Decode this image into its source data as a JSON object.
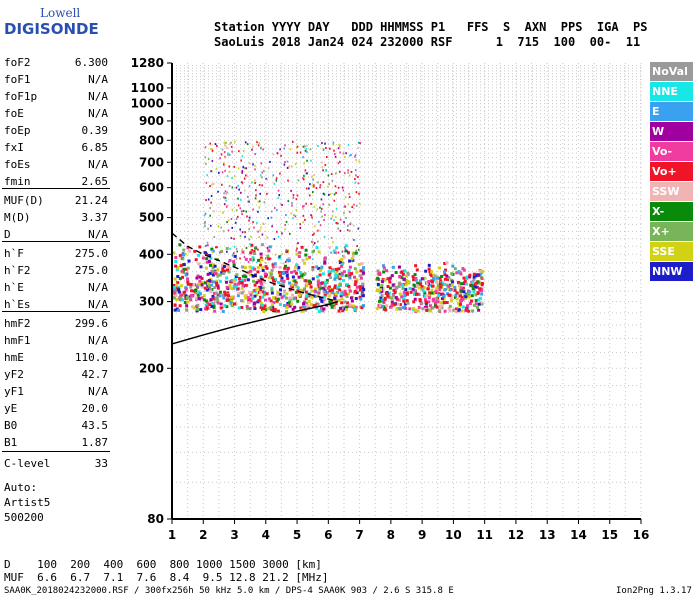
{
  "logo": {
    "top": "Lowell",
    "bottom": "DIGISONDE"
  },
  "header": {
    "line1": "Station YYYY DAY   DDD HHMMSS P1   FFS  S  AXN  PPS  IGA  PS",
    "line2": "SaoLuis 2018 Jan24 024 232000 RSF      1  715  100  00-  11"
  },
  "params": [
    {
      "name": "foF2",
      "value": "6.300"
    },
    {
      "name": "foF1",
      "value": "N/A"
    },
    {
      "name": "foF1p",
      "value": "N/A"
    },
    {
      "name": "foE",
      "value": "N/A"
    },
    {
      "name": "foEp",
      "value": "0.39"
    },
    {
      "name": "fxI",
      "value": "6.85"
    },
    {
      "name": "foEs",
      "value": "N/A"
    },
    {
      "name": "fmin",
      "value": "2.65"
    },
    {
      "name": "MUF(D)",
      "value": "21.24"
    },
    {
      "name": "M(D)",
      "value": "3.37"
    },
    {
      "name": "D",
      "value": "N/A"
    },
    {
      "name": "h`F",
      "value": "275.0"
    },
    {
      "name": "h`F2",
      "value": "275.0"
    },
    {
      "name": "h`E",
      "value": "N/A"
    },
    {
      "name": "h`Es",
      "value": "N/A"
    },
    {
      "name": "hmF2",
      "value": "299.6"
    },
    {
      "name": "hmF1",
      "value": "N/A"
    },
    {
      "name": "hmE",
      "value": "110.0"
    },
    {
      "name": "yF2",
      "value": "42.7"
    },
    {
      "name": "yF1",
      "value": "N/A"
    },
    {
      "name": "yE",
      "value": "20.0"
    },
    {
      "name": "B0",
      "value": "43.5"
    },
    {
      "name": "B1",
      "value": "1.87"
    },
    {
      "name": "C-level",
      "value": "33"
    }
  ],
  "auto": {
    "line1": "Auto:",
    "line2": "Artist5",
    "line3": "500200"
  },
  "footer": {
    "d_row": "D    100  200  400  600  800 1000 1500 3000 [km]",
    "muf_row": "MUF  6.6  6.7  7.1  7.6  8.4  9.5 12.8 21.2 [MHz]",
    "info": "SAA0K_2018024232000.RSF / 300fx256h 50 kHz 5.0 km / DPS-4 SAA0K 903 / 2.6 S 315.8 E",
    "version": "Ion2Png 1.3.17"
  },
  "legend": [
    {
      "label": "NoVal",
      "color": "#9a9a9a"
    },
    {
      "label": "NNE",
      "color": "#19e6e6"
    },
    {
      "label": "E",
      "color": "#3aa0f0"
    },
    {
      "label": "W",
      "color": "#a000a0"
    },
    {
      "label": "Vo-",
      "color": "#f03ca0"
    },
    {
      "label": "Vo+",
      "color": "#f01428"
    },
    {
      "label": "SSW",
      "color": "#f0b4b4"
    },
    {
      "label": "X-",
      "color": "#0a8a0a"
    },
    {
      "label": "X+",
      "color": "#78b45a"
    },
    {
      "label": "SSE",
      "color": "#d2d214"
    },
    {
      "label": "NNW",
      "color": "#1e1ec8"
    }
  ],
  "chart_data": {
    "type": "scatter",
    "xlim": [
      1,
      16
    ],
    "ylim": [
      80,
      1280
    ],
    "y_scale": "log",
    "xticks": [
      1,
      2,
      3,
      4,
      5,
      6,
      7,
      8,
      9,
      10,
      11,
      12,
      13,
      14,
      15,
      16
    ],
    "yticks": [
      80,
      200,
      300,
      400,
      500,
      600,
      700,
      800,
      900,
      1000,
      1100,
      1280
    ],
    "grid": true,
    "legend_position": "right",
    "trace_region": {
      "x_range": [
        1.0,
        10.9
      ],
      "y_range": [
        280,
        800
      ]
    },
    "profile_curve": {
      "x": [
        1.0,
        2.0,
        3.0,
        4.0,
        5.0,
        6.0,
        6.3
      ],
      "y": [
        232,
        245,
        258,
        270,
        283,
        295,
        300
      ]
    },
    "dashed_curve": {
      "x": [
        1.0,
        1.5,
        2.0,
        2.5,
        3.0,
        3.5,
        4.0,
        4.5,
        5.0,
        5.5,
        6.0,
        6.3
      ],
      "y": [
        455,
        420,
        400,
        385,
        370,
        355,
        340,
        330,
        320,
        312,
        305,
        300
      ]
    }
  }
}
